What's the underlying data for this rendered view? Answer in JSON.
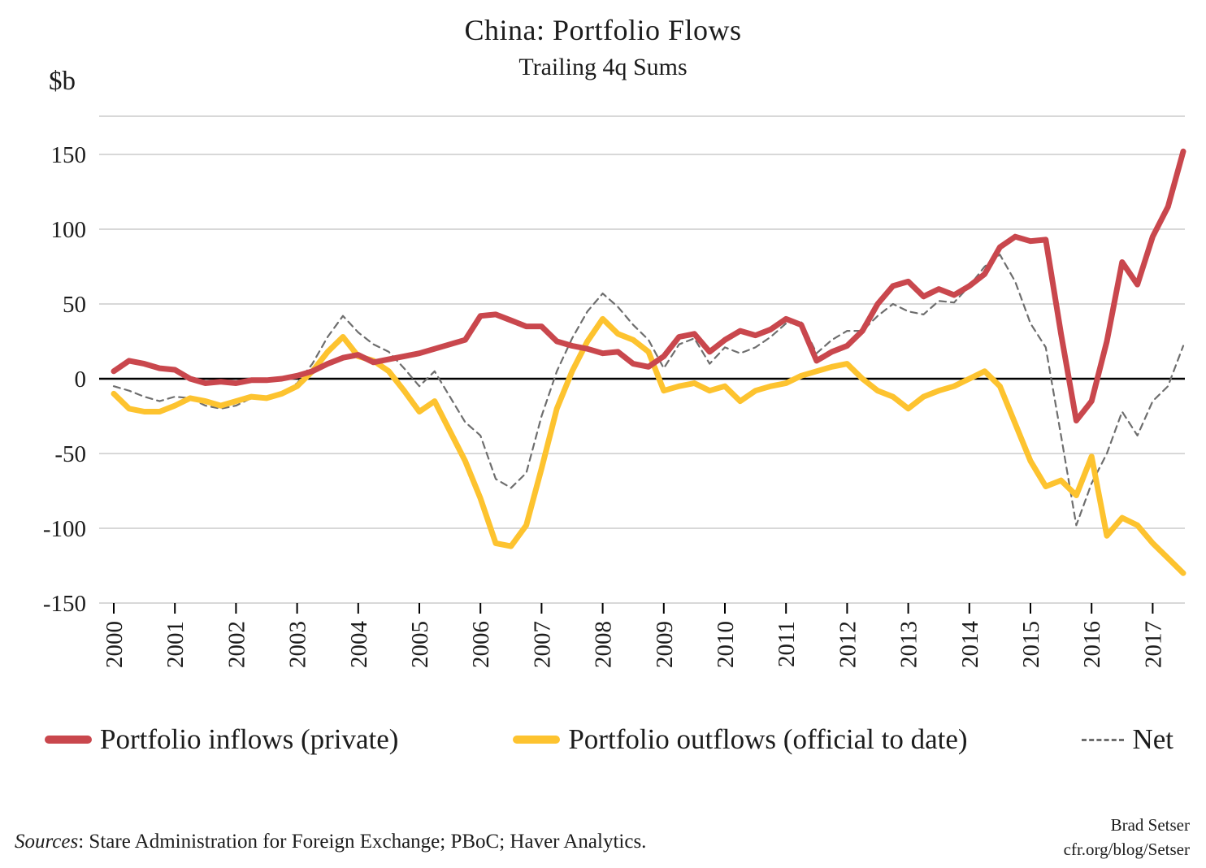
{
  "page": {
    "title": "China: Portfolio Flows",
    "subtitle": "Trailing 4q Sums",
    "y_axis_unit": "$b",
    "sources_label": "Sources",
    "sources_rest": ": Stare Administration for Foreign Exchange; PBoC; Haver Analytics.",
    "credit_line1": "Brad Setser",
    "credit_line2": "cfr.org/blog/Setser"
  },
  "legend": [
    {
      "label": "Portfolio inflows (private)",
      "color": "#c9474d",
      "style": "solid"
    },
    {
      "label": "Portfolio outflows (official to date)",
      "color": "#fdc32f",
      "style": "solid"
    },
    {
      "label": "Net",
      "color": "#6e6e6e",
      "style": "dashed"
    }
  ],
  "chart_data": {
    "type": "line",
    "title": "China: Portfolio Flows",
    "subtitle": "Trailing 4q Sums",
    "ylabel": "$b",
    "xlabel": "",
    "grid": "horizontal",
    "legend_position": "bottom",
    "x_start": 2000.0,
    "x_step": 0.25,
    "x_ticks": [
      2000,
      2001,
      2002,
      2003,
      2004,
      2005,
      2006,
      2007,
      2008,
      2009,
      2010,
      2011,
      2012,
      2013,
      2014,
      2015,
      2016,
      2017
    ],
    "y_ticks": [
      150,
      100,
      50,
      0,
      -50,
      -100,
      -150
    ],
    "ylim": [
      -150,
      175
    ],
    "xlim": [
      2000,
      2017.6
    ],
    "zero_line": true,
    "series": [
      {
        "name": "Portfolio inflows (private)",
        "color": "#c9474d",
        "dash": null,
        "width": 7,
        "values": [
          5,
          12,
          10,
          7,
          6,
          0,
          -3,
          -2,
          -3,
          -1,
          -1,
          0,
          2,
          5,
          10,
          14,
          16,
          11,
          13,
          15,
          17,
          20,
          23,
          26,
          42,
          43,
          39,
          35,
          35,
          25,
          22,
          20,
          17,
          18,
          10,
          8,
          15,
          28,
          30,
          18,
          26,
          32,
          29,
          33,
          40,
          36,
          12,
          18,
          22,
          32,
          50,
          62,
          65,
          55,
          60,
          56,
          62,
          70,
          88,
          95,
          92,
          93,
          30,
          -28,
          -15,
          25,
          78,
          63,
          95,
          115,
          152
        ]
      },
      {
        "name": "Portfolio outflows (official to date)",
        "color": "#fdc32f",
        "dash": null,
        "width": 7,
        "values": [
          -10,
          -20,
          -22,
          -22,
          -18,
          -13,
          -15,
          -18,
          -15,
          -12,
          -13,
          -10,
          -5,
          5,
          18,
          28,
          15,
          12,
          5,
          -8,
          -22,
          -15,
          -35,
          -55,
          -80,
          -110,
          -112,
          -98,
          -60,
          -20,
          5,
          25,
          40,
          30,
          26,
          18,
          -8,
          -5,
          -3,
          -8,
          -5,
          -15,
          -8,
          -5,
          -3,
          2,
          5,
          8,
          10,
          0,
          -8,
          -12,
          -20,
          -12,
          -8,
          -5,
          0,
          5,
          -5,
          -30,
          -55,
          -72,
          -68,
          -78,
          -52,
          -105,
          -93,
          -98,
          -110,
          -120,
          -130
        ]
      },
      {
        "name": "Net",
        "color": "#6e6e6e",
        "dash": [
          8,
          6
        ],
        "width": 2.2,
        "values": [
          -5,
          -8,
          -12,
          -15,
          -12,
          -13,
          -18,
          -20,
          -18,
          -13,
          -14,
          -10,
          -3,
          10,
          28,
          42,
          31,
          23,
          18,
          7,
          -5,
          5,
          -12,
          -29,
          -38,
          -67,
          -73,
          -63,
          -25,
          5,
          27,
          45,
          57,
          48,
          36,
          26,
          7,
          23,
          27,
          10,
          21,
          17,
          21,
          28,
          37,
          38,
          17,
          26,
          32,
          32,
          42,
          50,
          45,
          43,
          52,
          51,
          62,
          75,
          83,
          65,
          37,
          21,
          -38,
          -98,
          -70,
          -50,
          -22,
          -38,
          -15,
          -5,
          22
        ]
      }
    ]
  }
}
